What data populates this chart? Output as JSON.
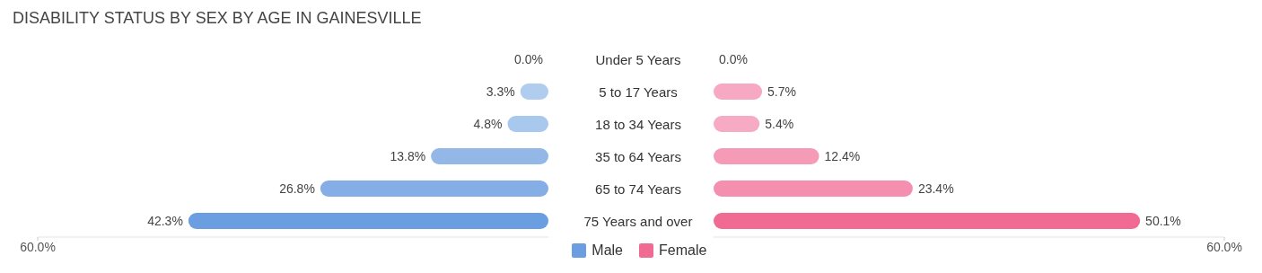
{
  "chart_data": [
    {
      "type": "bar",
      "orientation": "horizontal",
      "title": "DISABILITY STATUS BY SEX BY AGE IN GAINESVILLE",
      "categories": [
        "Under 5 Years",
        "5 to 17 Years",
        "18 to 34 Years",
        "35 to 64 Years",
        "65 to 74 Years",
        "75 Years and over"
      ],
      "series": [
        {
          "name": "Male",
          "color": "#6a9ee0",
          "colors": [
            "#bcd4f2",
            "#b0cdef",
            "#a9c8ee",
            "#93b8e8",
            "#86aee6",
            "#6a9ee0"
          ],
          "values": [
            0.0,
            3.3,
            4.8,
            13.8,
            26.8,
            42.3
          ],
          "value_labels": [
            "0.0%",
            "3.3%",
            "4.8%",
            "13.8%",
            "26.8%",
            "42.3%"
          ]
        }
      ],
      "xlim": [
        60,
        0
      ],
      "xticks": [
        {
          "value": 60,
          "label": "60.0%"
        }
      ],
      "legend": "bottom"
    },
    {
      "type": "bar",
      "orientation": "horizontal",
      "series": [
        {
          "name": "Female",
          "color": "#f06a94",
          "colors": [
            "#f9bcd0",
            "#f7a9c3",
            "#f7aac3",
            "#f59bb8",
            "#f48fb0",
            "#f06a94"
          ],
          "values": [
            0.0,
            5.7,
            5.4,
            12.4,
            23.4,
            50.1
          ],
          "value_labels": [
            "0.0%",
            "5.7%",
            "5.4%",
            "12.4%",
            "23.4%",
            "50.1%"
          ]
        }
      ],
      "xlim": [
        0,
        60
      ],
      "xticks": [
        {
          "value": 60,
          "label": "60.0%"
        }
      ],
      "legend": "bottom",
      "tick_labels": "x"
    }
  ]
}
